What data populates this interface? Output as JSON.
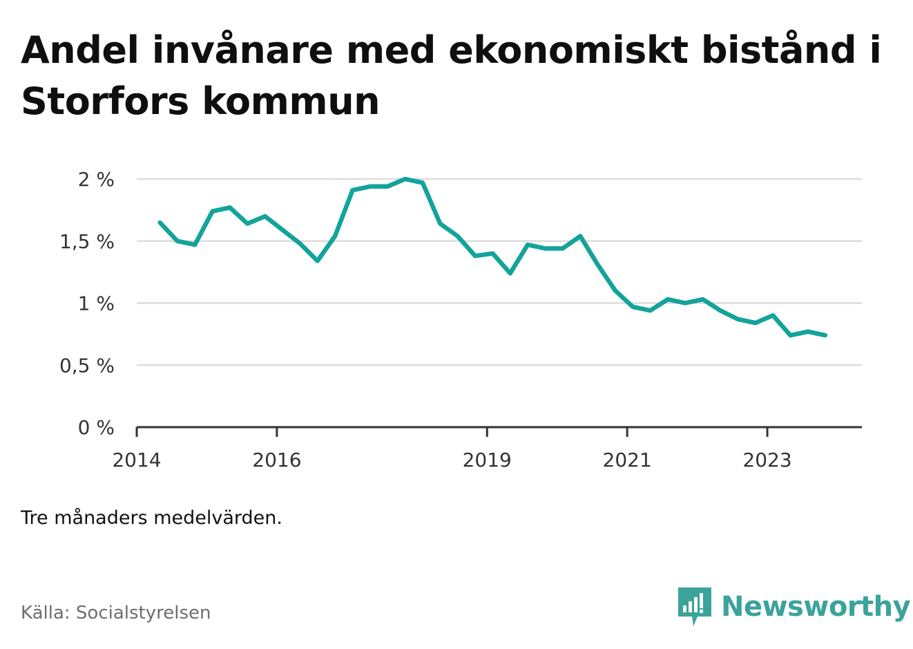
{
  "title": "Andel invånare med ekonomiskt bistånd i Storfors kommun",
  "note": "Tre månaders medelvärden.",
  "source": "Källa: Socialstyrelsen",
  "brand": "Newsworthy",
  "colors": {
    "line": "#13a39a",
    "grid": "#dcdcdc",
    "axis": "#333333",
    "brand": "#3aa39a"
  },
  "chart_data": {
    "type": "line",
    "title": "Andel invånare med ekonomiskt bistånd i Storfors kommun",
    "xlabel": "",
    "ylabel": "",
    "ylim": [
      0,
      2
    ],
    "yticks": [
      0,
      0.5,
      1,
      1.5,
      2
    ],
    "ytick_labels": [
      "0 %",
      "0,5 %",
      "1 %",
      "1,5 %",
      "2 %"
    ],
    "xticks": [
      2014,
      2016,
      2019,
      2021,
      2023
    ],
    "xtick_labels": [
      "2014",
      "2016",
      "2019",
      "2021",
      "2023"
    ],
    "xlim": [
      2014.0,
      2024.35
    ],
    "grid": true,
    "series": [
      {
        "values": [
          {
            "x": 2014.33,
            "y": 1.65
          },
          {
            "x": 2014.58,
            "y": 1.5
          },
          {
            "x": 2014.83,
            "y": 1.47
          },
          {
            "x": 2015.08,
            "y": 1.74
          },
          {
            "x": 2015.33,
            "y": 1.77
          },
          {
            "x": 2015.58,
            "y": 1.64
          },
          {
            "x": 2015.83,
            "y": 1.7
          },
          {
            "x": 2016.08,
            "y": 1.59
          },
          {
            "x": 2016.33,
            "y": 1.48
          },
          {
            "x": 2016.58,
            "y": 1.34
          },
          {
            "x": 2016.83,
            "y": 1.54
          },
          {
            "x": 2017.08,
            "y": 1.91
          },
          {
            "x": 2017.33,
            "y": 1.94
          },
          {
            "x": 2017.58,
            "y": 1.94
          },
          {
            "x": 2017.83,
            "y": 2.0
          },
          {
            "x": 2018.08,
            "y": 1.97
          },
          {
            "x": 2018.33,
            "y": 1.64
          },
          {
            "x": 2018.58,
            "y": 1.54
          },
          {
            "x": 2018.83,
            "y": 1.38
          },
          {
            "x": 2019.08,
            "y": 1.4
          },
          {
            "x": 2019.33,
            "y": 1.24
          },
          {
            "x": 2019.58,
            "y": 1.47
          },
          {
            "x": 2019.83,
            "y": 1.44
          },
          {
            "x": 2020.08,
            "y": 1.44
          },
          {
            "x": 2020.33,
            "y": 1.54
          },
          {
            "x": 2020.58,
            "y": 1.31
          },
          {
            "x": 2020.83,
            "y": 1.1
          },
          {
            "x": 2021.08,
            "y": 0.97
          },
          {
            "x": 2021.33,
            "y": 0.94
          },
          {
            "x": 2021.58,
            "y": 1.03
          },
          {
            "x": 2021.83,
            "y": 1.0
          },
          {
            "x": 2022.08,
            "y": 1.03
          },
          {
            "x": 2022.33,
            "y": 0.94
          },
          {
            "x": 2022.58,
            "y": 0.87
          },
          {
            "x": 2022.83,
            "y": 0.84
          },
          {
            "x": 2023.08,
            "y": 0.9
          },
          {
            "x": 2023.33,
            "y": 0.74
          },
          {
            "x": 2023.58,
            "y": 0.77
          },
          {
            "x": 2023.83,
            "y": 0.74
          }
        ]
      }
    ]
  }
}
